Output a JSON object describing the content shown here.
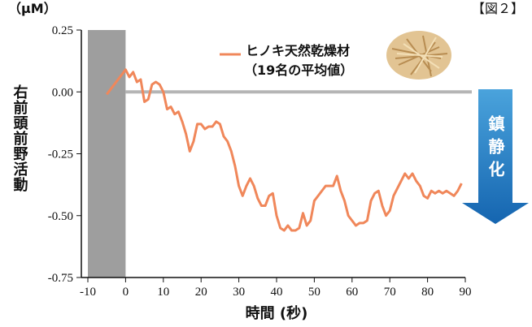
{
  "chart_data": {
    "type": "line",
    "unit_label": "（μM）",
    "figure_label": "【図２】",
    "y_label": "右前頭前野活動",
    "x_label": "時間 (秒)",
    "legend_note": "（19名の平均値）",
    "annotation": "鎮静化",
    "shaded_region": [
      -10,
      0
    ],
    "reference_line": 0,
    "xlim": [
      -10,
      90
    ],
    "xticks": [
      -10,
      0,
      10,
      20,
      30,
      40,
      50,
      60,
      70,
      80,
      90
    ],
    "ylim": [
      -0.75,
      0.25
    ],
    "yticks": [
      0.25,
      {
        "value": 0,
        "label": "0.00"
      },
      -0.25,
      {
        "value": -0.5,
        "label": "-0.50"
      },
      -0.75
    ],
    "x": [
      -5,
      -4,
      -3,
      -2,
      -1,
      0,
      1,
      2,
      3,
      4,
      5,
      6,
      7,
      8,
      9,
      10,
      11,
      12,
      13,
      14,
      15,
      16,
      17,
      18,
      19,
      20,
      21,
      22,
      23,
      24,
      25,
      26,
      27,
      28,
      29,
      30,
      31,
      32,
      33,
      34,
      35,
      36,
      37,
      38,
      39,
      40,
      41,
      42,
      43,
      44,
      45,
      46,
      47,
      48,
      49,
      50,
      51,
      52,
      53,
      54,
      55,
      56,
      57,
      58,
      59,
      60,
      61,
      62,
      63,
      64,
      65,
      66,
      67,
      68,
      69,
      70,
      71,
      72,
      73,
      74,
      75,
      76,
      77,
      78,
      79,
      80,
      81,
      82,
      83,
      84,
      85,
      86,
      87,
      88,
      89
    ],
    "series": [
      {
        "name": "ヒノキ天然乾燥材",
        "color": "#f0875a",
        "values": [
          -0.01,
          0.01,
          0.03,
          0.05,
          0.07,
          0.09,
          0.06,
          0.08,
          0.04,
          0.05,
          -0.04,
          -0.03,
          0.03,
          0.04,
          0.03,
          0.0,
          -0.07,
          -0.06,
          -0.09,
          -0.08,
          -0.12,
          -0.17,
          -0.24,
          -0.2,
          -0.13,
          -0.13,
          -0.15,
          -0.14,
          -0.14,
          -0.12,
          -0.13,
          -0.18,
          -0.2,
          -0.24,
          -0.3,
          -0.38,
          -0.42,
          -0.38,
          -0.35,
          -0.38,
          -0.43,
          -0.46,
          -0.46,
          -0.42,
          -0.41,
          -0.5,
          -0.55,
          -0.56,
          -0.54,
          -0.56,
          -0.56,
          -0.55,
          -0.49,
          -0.54,
          -0.52,
          -0.44,
          -0.42,
          -0.4,
          -0.38,
          -0.38,
          -0.38,
          -0.34,
          -0.4,
          -0.44,
          -0.5,
          -0.52,
          -0.54,
          -0.53,
          -0.53,
          -0.52,
          -0.44,
          -0.41,
          -0.4,
          -0.46,
          -0.5,
          -0.48,
          -0.42,
          -0.39,
          -0.36,
          -0.33,
          -0.35,
          -0.33,
          -0.36,
          -0.38,
          -0.42,
          -0.43,
          -0.4,
          -0.41,
          -0.4,
          -0.41,
          -0.4,
          -0.41,
          -0.42,
          -0.4,
          -0.37
        ]
      }
    ]
  }
}
